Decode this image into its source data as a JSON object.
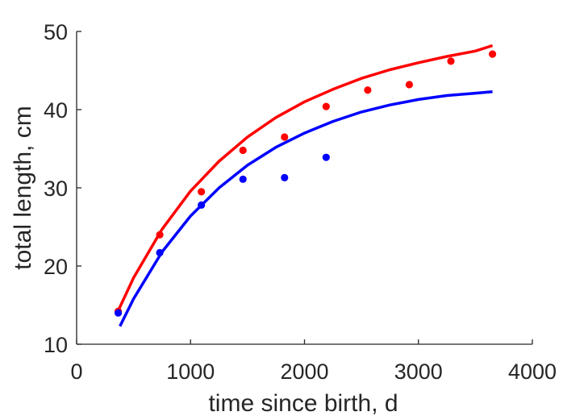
{
  "chart_data": {
    "type": "scatter",
    "title": "",
    "xlabel": "time since birth, d",
    "ylabel": "total length, cm",
    "xlim": [
      0,
      4000
    ],
    "ylim": [
      10,
      50
    ],
    "xticks": [
      0,
      1000,
      2000,
      3000,
      4000
    ],
    "yticks": [
      10,
      20,
      30,
      40,
      50
    ],
    "grid": false,
    "series": [
      {
        "kind": "points",
        "color": "#ff0000",
        "points": [
          {
            "x": 365,
            "y": 14.2
          },
          {
            "x": 730,
            "y": 24.0
          },
          {
            "x": 1095,
            "y": 29.5
          },
          {
            "x": 1460,
            "y": 34.8
          },
          {
            "x": 1825,
            "y": 36.5
          },
          {
            "x": 2190,
            "y": 40.4
          },
          {
            "x": 2555,
            "y": 42.5
          },
          {
            "x": 2920,
            "y": 43.2
          },
          {
            "x": 3285,
            "y": 46.2
          },
          {
            "x": 3650,
            "y": 47.1
          }
        ]
      },
      {
        "kind": "points",
        "color": "#0000ff",
        "points": [
          {
            "x": 365,
            "y": 14.0
          },
          {
            "x": 730,
            "y": 21.7
          },
          {
            "x": 1095,
            "y": 27.8
          },
          {
            "x": 1460,
            "y": 31.1
          },
          {
            "x": 1825,
            "y": 31.3
          },
          {
            "x": 2190,
            "y": 33.9
          }
        ]
      },
      {
        "kind": "line",
        "color": "#ff0000",
        "points": [
          {
            "x": 365,
            "y": 14.3
          },
          {
            "x": 500,
            "y": 18.5
          },
          {
            "x": 750,
            "y": 24.7
          },
          {
            "x": 1000,
            "y": 29.6
          },
          {
            "x": 1250,
            "y": 33.4
          },
          {
            "x": 1500,
            "y": 36.5
          },
          {
            "x": 1750,
            "y": 39.0
          },
          {
            "x": 2000,
            "y": 41.0
          },
          {
            "x": 2250,
            "y": 42.6
          },
          {
            "x": 2500,
            "y": 44.0
          },
          {
            "x": 2750,
            "y": 45.1
          },
          {
            "x": 3000,
            "y": 46.0
          },
          {
            "x": 3250,
            "y": 46.8
          },
          {
            "x": 3500,
            "y": 47.5
          },
          {
            "x": 3650,
            "y": 48.2
          }
        ]
      },
      {
        "kind": "line",
        "color": "#0000ff",
        "points": [
          {
            "x": 380,
            "y": 12.3
          },
          {
            "x": 500,
            "y": 15.8
          },
          {
            "x": 750,
            "y": 21.8
          },
          {
            "x": 1000,
            "y": 26.4
          },
          {
            "x": 1250,
            "y": 30.0
          },
          {
            "x": 1500,
            "y": 32.9
          },
          {
            "x": 1750,
            "y": 35.2
          },
          {
            "x": 2000,
            "y": 37.0
          },
          {
            "x": 2250,
            "y": 38.5
          },
          {
            "x": 2500,
            "y": 39.7
          },
          {
            "x": 2750,
            "y": 40.6
          },
          {
            "x": 3000,
            "y": 41.3
          },
          {
            "x": 3250,
            "y": 41.8
          },
          {
            "x": 3500,
            "y": 42.1
          },
          {
            "x": 3650,
            "y": 42.3
          }
        ]
      }
    ]
  }
}
